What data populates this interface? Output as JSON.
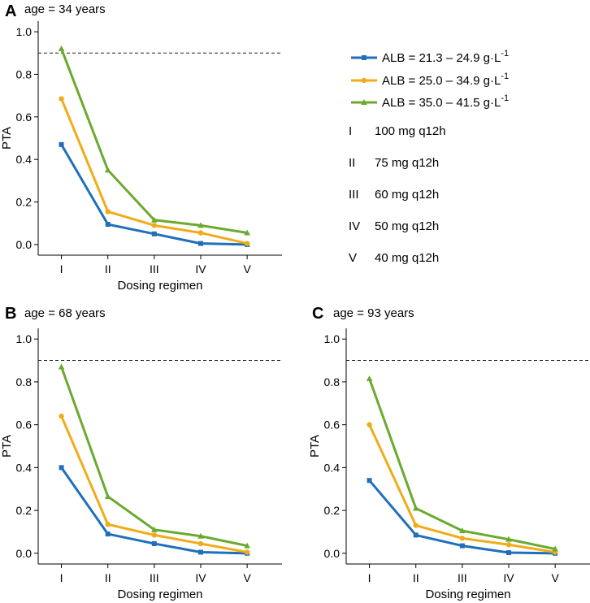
{
  "legend": {
    "series": [
      {
        "name": "ALB = 21.3 – 24.9 g·L",
        "superscript": "-1",
        "color": "#1f6fba",
        "marker": "square"
      },
      {
        "name": "ALB = 25.0 – 34.9 g·L",
        "superscript": "-1",
        "color": "#f0ac18",
        "marker": "circle"
      },
      {
        "name": "ALB = 35.0 – 41.5 g·L",
        "superscript": "-1",
        "color": "#6aaa2e",
        "marker": "triangle"
      }
    ],
    "regimens": [
      {
        "code": "I",
        "label": "100 mg q12h"
      },
      {
        "code": "II",
        "label": "75 mg q12h"
      },
      {
        "code": "III",
        "label": "60 mg q12h"
      },
      {
        "code": "IV",
        "label": "50 mg q12h"
      },
      {
        "code": "V",
        "label": "40 mg q12h"
      }
    ]
  },
  "chart_data": [
    {
      "type": "line",
      "panel": "A",
      "title": "age = 34 years",
      "xlabel": "Dosing regimen",
      "ylabel": "PTA",
      "categories": [
        "I",
        "II",
        "III",
        "IV",
        "V"
      ],
      "ylim": [
        -0.05,
        1.05
      ],
      "yticks": [
        "0.0",
        "0.2",
        "0.4",
        "0.6",
        "0.8",
        "1.0"
      ],
      "threshold": 0.9,
      "series": [
        {
          "name": "ALB = 21.3 – 24.9 g·L-1",
          "values": [
            0.47,
            0.095,
            0.05,
            0.005,
            0.0
          ]
        },
        {
          "name": "ALB = 25.0 – 34.9 g·L-1",
          "values": [
            0.685,
            0.155,
            0.09,
            0.055,
            0.005
          ]
        },
        {
          "name": "ALB = 35.0 – 41.5 g·L-1",
          "values": [
            0.92,
            0.35,
            0.115,
            0.09,
            0.055
          ]
        }
      ]
    },
    {
      "type": "line",
      "panel": "B",
      "title": "age = 68 years",
      "xlabel": "Dosing regimen",
      "ylabel": "PTA",
      "categories": [
        "I",
        "II",
        "III",
        "IV",
        "V"
      ],
      "ylim": [
        -0.05,
        1.05
      ],
      "yticks": [
        "0.0",
        "0.2",
        "0.4",
        "0.6",
        "0.8",
        "1.0"
      ],
      "threshold": 0.9,
      "series": [
        {
          "name": "ALB = 21.3 – 24.9 g·L-1",
          "values": [
            0.4,
            0.09,
            0.045,
            0.005,
            0.0
          ]
        },
        {
          "name": "ALB = 25.0 – 34.9 g·L-1",
          "values": [
            0.64,
            0.135,
            0.085,
            0.045,
            0.005
          ]
        },
        {
          "name": "ALB = 35.0 – 41.5 g·L-1",
          "values": [
            0.87,
            0.265,
            0.11,
            0.08,
            0.035
          ]
        }
      ]
    },
    {
      "type": "line",
      "panel": "C",
      "title": "age = 93 years",
      "xlabel": "Dosing regimen",
      "ylabel": "PTA",
      "categories": [
        "I",
        "II",
        "III",
        "IV",
        "V"
      ],
      "ylim": [
        -0.05,
        1.05
      ],
      "yticks": [
        "0.0",
        "0.2",
        "0.4",
        "0.6",
        "0.8",
        "1.0"
      ],
      "threshold": 0.9,
      "series": [
        {
          "name": "ALB = 21.3 – 24.9 g·L-1",
          "values": [
            0.34,
            0.085,
            0.035,
            0.003,
            0.0
          ]
        },
        {
          "name": "ALB = 25.0 – 34.9 g·L-1",
          "values": [
            0.6,
            0.13,
            0.07,
            0.04,
            0.005
          ]
        },
        {
          "name": "ALB = 35.0 – 41.5 g·L-1",
          "values": [
            0.815,
            0.21,
            0.105,
            0.065,
            0.02
          ]
        }
      ]
    }
  ]
}
